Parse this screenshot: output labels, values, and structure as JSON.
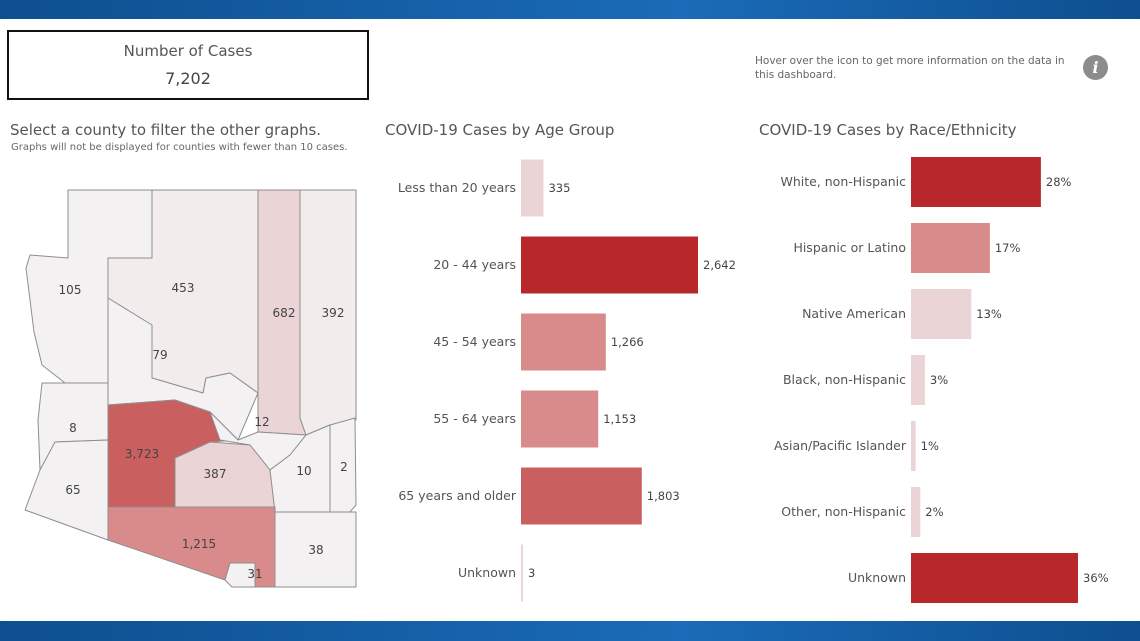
{
  "kpi": {
    "title": "Number of Cases",
    "value": "7,202"
  },
  "hint": {
    "text": "Hover over the icon to get more information on the data in this dashboard.",
    "icon": "info-icon"
  },
  "map": {
    "title": "Select a county to filter the other graphs.",
    "subtitle": "Graphs will not be displayed for counties with fewer than 10 cases.",
    "counties": [
      {
        "id": "mohave",
        "value": "105"
      },
      {
        "id": "coconino",
        "value": "453"
      },
      {
        "id": "navajo",
        "value": "682"
      },
      {
        "id": "apache",
        "value": "392"
      },
      {
        "id": "yavapai",
        "value": "79"
      },
      {
        "id": "la-paz",
        "value": "8"
      },
      {
        "id": "maricopa",
        "value": "3,723"
      },
      {
        "id": "gila",
        "value": "12"
      },
      {
        "id": "yuma",
        "value": "65"
      },
      {
        "id": "pinal",
        "value": "387"
      },
      {
        "id": "graham",
        "value": "10"
      },
      {
        "id": "greenlee",
        "value": "2"
      },
      {
        "id": "pima",
        "value": "1,215"
      },
      {
        "id": "cochise",
        "value": "38"
      },
      {
        "id": "santa-cruz",
        "value": "31"
      }
    ]
  },
  "colors": {
    "dark": "#b8282b",
    "medium": "#ca5f60",
    "light": "#d98a8a",
    "pale": "#ebd4d5",
    "veryPale": "#f3eced",
    "county": "#f3f1f1"
  },
  "chart_data": [
    {
      "type": "bar",
      "orientation": "horizontal",
      "title": "COVID-19 Cases by Age Group",
      "categories": [
        "Less than 20 years",
        "20 - 44 years",
        "45 - 54 years",
        "55 - 64 years",
        "65 years and older",
        "Unknown"
      ],
      "values": [
        335,
        2642,
        1266,
        1153,
        1803,
        3
      ],
      "labels": [
        "335",
        "2,642",
        "1,266",
        "1,153",
        "1,803",
        "3"
      ]
    },
    {
      "type": "bar",
      "orientation": "horizontal",
      "title": "COVID-19 Cases by Race/Ethnicity",
      "categories": [
        "White, non-Hispanic",
        "Hispanic or Latino",
        "Native American",
        "Black, non-Hispanic",
        "Asian/Pacific Islander",
        "Other, non-Hispanic",
        "Unknown"
      ],
      "values": [
        28,
        17,
        13,
        3,
        1,
        2,
        36
      ],
      "labels": [
        "28%",
        "17%",
        "13%",
        "3%",
        "1%",
        "2%",
        "36%"
      ]
    }
  ]
}
